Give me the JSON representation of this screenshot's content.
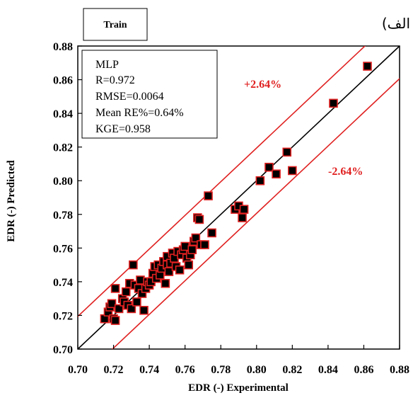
{
  "panel_label": "(الف",
  "chart_data": {
    "type": "scatter",
    "subset_label": "Train",
    "xlabel": "EDR (-) Experimental",
    "ylabel": "EDR (-) Predicted",
    "xlim": [
      0.7,
      0.88
    ],
    "ylim": [
      0.7,
      0.88
    ],
    "x_ticks": [
      "0.70",
      "0.72",
      "0.74",
      "0.76",
      "0.78",
      "0.80",
      "0.82",
      "0.84",
      "0.86",
      "0.88"
    ],
    "y_ticks": [
      "0.70",
      "0.72",
      "0.74",
      "0.76",
      "0.78",
      "0.80",
      "0.82",
      "0.84",
      "0.86",
      "0.88"
    ],
    "grid": false,
    "stats": [
      "MLP",
      "R=0.972",
      "RMSE=0.0064",
      "Mean RE%=0.64%",
      "KGE=0.958"
    ],
    "bands": {
      "upper_label": "+2.64%",
      "lower_label": "-2.64%",
      "percent": 2.64,
      "color": "#e02020"
    },
    "reference_line": "y = x",
    "marker": {
      "fill": "#000000",
      "edge": "#e02020",
      "shape": "square"
    },
    "points": [
      {
        "x": 0.715,
        "y": 0.718
      },
      {
        "x": 0.717,
        "y": 0.722
      },
      {
        "x": 0.718,
        "y": 0.725
      },
      {
        "x": 0.719,
        "y": 0.727
      },
      {
        "x": 0.72,
        "y": 0.718
      },
      {
        "x": 0.721,
        "y": 0.736
      },
      {
        "x": 0.721,
        "y": 0.717
      },
      {
        "x": 0.723,
        "y": 0.724
      },
      {
        "x": 0.725,
        "y": 0.73
      },
      {
        "x": 0.726,
        "y": 0.728
      },
      {
        "x": 0.727,
        "y": 0.734
      },
      {
        "x": 0.728,
        "y": 0.726
      },
      {
        "x": 0.729,
        "y": 0.739
      },
      {
        "x": 0.73,
        "y": 0.724
      },
      {
        "x": 0.731,
        "y": 0.75
      },
      {
        "x": 0.732,
        "y": 0.738
      },
      {
        "x": 0.733,
        "y": 0.728
      },
      {
        "x": 0.734,
        "y": 0.736
      },
      {
        "x": 0.735,
        "y": 0.741
      },
      {
        "x": 0.736,
        "y": 0.733
      },
      {
        "x": 0.737,
        "y": 0.723
      },
      {
        "x": 0.738,
        "y": 0.736
      },
      {
        "x": 0.739,
        "y": 0.74
      },
      {
        "x": 0.74,
        "y": 0.738
      },
      {
        "x": 0.741,
        "y": 0.74
      },
      {
        "x": 0.742,
        "y": 0.745
      },
      {
        "x": 0.743,
        "y": 0.749
      },
      {
        "x": 0.744,
        "y": 0.742
      },
      {
        "x": 0.745,
        "y": 0.75
      },
      {
        "x": 0.746,
        "y": 0.744
      },
      {
        "x": 0.747,
        "y": 0.748
      },
      {
        "x": 0.748,
        "y": 0.752
      },
      {
        "x": 0.749,
        "y": 0.739
      },
      {
        "x": 0.75,
        "y": 0.75
      },
      {
        "x": 0.75,
        "y": 0.755
      },
      {
        "x": 0.751,
        "y": 0.746
      },
      {
        "x": 0.752,
        "y": 0.751
      },
      {
        "x": 0.753,
        "y": 0.757
      },
      {
        "x": 0.754,
        "y": 0.754
      },
      {
        "x": 0.755,
        "y": 0.749
      },
      {
        "x": 0.756,
        "y": 0.758
      },
      {
        "x": 0.757,
        "y": 0.747
      },
      {
        "x": 0.758,
        "y": 0.756
      },
      {
        "x": 0.759,
        "y": 0.759
      },
      {
        "x": 0.76,
        "y": 0.761
      },
      {
        "x": 0.761,
        "y": 0.754
      },
      {
        "x": 0.762,
        "y": 0.75
      },
      {
        "x": 0.763,
        "y": 0.756
      },
      {
        "x": 0.764,
        "y": 0.759
      },
      {
        "x": 0.765,
        "y": 0.764
      },
      {
        "x": 0.766,
        "y": 0.766
      },
      {
        "x": 0.767,
        "y": 0.778
      },
      {
        "x": 0.768,
        "y": 0.777
      },
      {
        "x": 0.769,
        "y": 0.762
      },
      {
        "x": 0.771,
        "y": 0.762
      },
      {
        "x": 0.773,
        "y": 0.791
      },
      {
        "x": 0.775,
        "y": 0.769
      },
      {
        "x": 0.788,
        "y": 0.783
      },
      {
        "x": 0.79,
        "y": 0.785
      },
      {
        "x": 0.792,
        "y": 0.778
      },
      {
        "x": 0.793,
        "y": 0.783
      },
      {
        "x": 0.802,
        "y": 0.8
      },
      {
        "x": 0.807,
        "y": 0.808
      },
      {
        "x": 0.811,
        "y": 0.804
      },
      {
        "x": 0.817,
        "y": 0.817
      },
      {
        "x": 0.82,
        "y": 0.806
      },
      {
        "x": 0.843,
        "y": 0.846
      },
      {
        "x": 0.862,
        "y": 0.868
      }
    ]
  }
}
